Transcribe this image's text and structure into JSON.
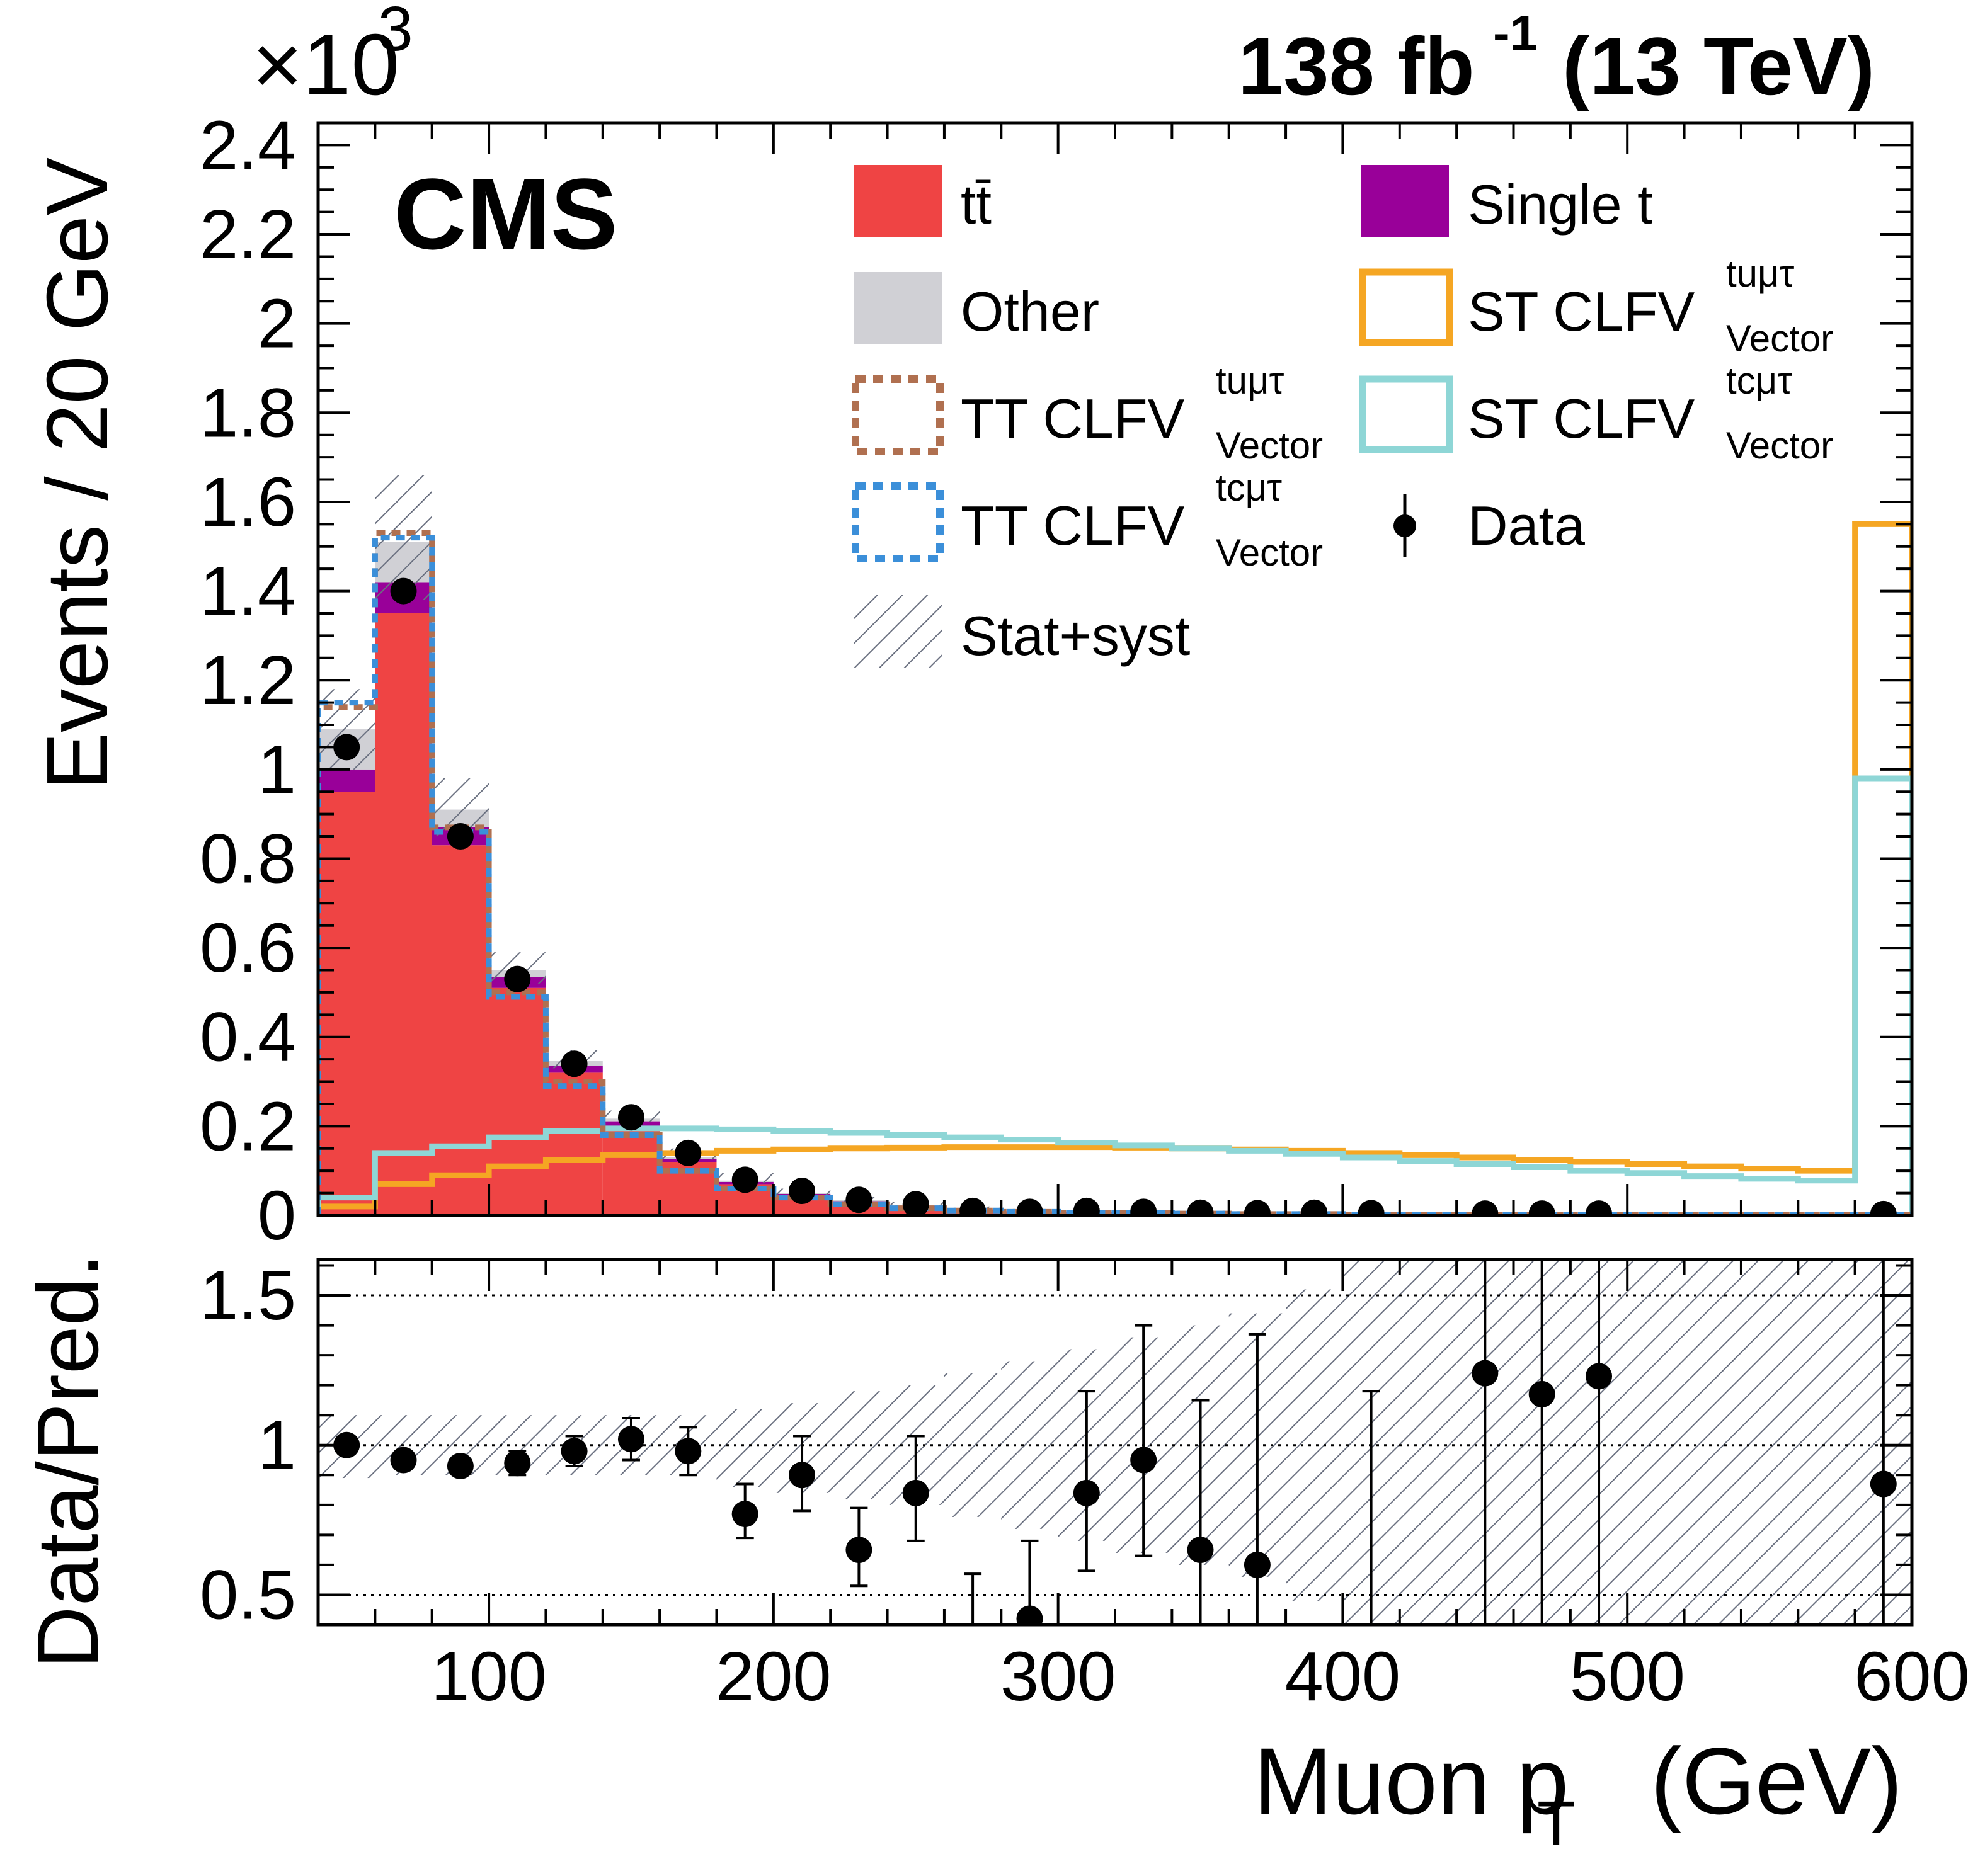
{
  "header": {
    "lumi": "138 fb",
    "lumi_exp": "-1",
    "energy": "(13 TeV)",
    "experiment": "CMS",
    "y_multiplier": "×10",
    "y_multiplier_exp": "3"
  },
  "legend": {
    "tt": "tt̄",
    "single_t": "Single t",
    "other": "Other",
    "st_tumutau": "ST CLFV",
    "st_tumutau_sup": "tuμτ",
    "st_tumutau_sub": "Vector",
    "tt_tumutau": "TT CLFV",
    "tt_tumutau_sup": "tuμτ",
    "tt_tumutau_sub": "Vector",
    "st_tcmutau": "ST CLFV",
    "st_tcmutau_sup": "tcμτ",
    "st_tcmutau_sub": "Vector",
    "tt_tcmutau": "TT CLFV",
    "tt_tcmutau_sup": "tcμτ",
    "tt_tcmutau_sub": "Vector",
    "data": "Data",
    "unc": "Stat+syst"
  },
  "colors": {
    "tt": "#ef4444",
    "single_t": "#990099",
    "other": "#d0d0d5",
    "st_tu": "#f5a623",
    "st_tc": "#8ed6d6",
    "tt_tu": "#b07050",
    "tt_tc": "#3b8fd9",
    "hatch": "#6a7080"
  },
  "chart_data": {
    "type": "bar",
    "x_edges": [
      40,
      60,
      80,
      100,
      120,
      140,
      160,
      180,
      200,
      220,
      240,
      260,
      280,
      300,
      320,
      340,
      360,
      380,
      400,
      420,
      440,
      460,
      480,
      500,
      520,
      540,
      560,
      580,
      600
    ],
    "xlim": [
      40,
      600
    ],
    "xlabel": "Muon p",
    "xlabel_sub": "T",
    "xlabel_unit": "(GeV)",
    "main": {
      "ylabel": "Events / 20 GeV",
      "ylim": [
        0,
        2.45
      ],
      "y_scale_factor": 1000,
      "y_ticks": [
        0,
        0.2,
        0.4,
        0.6,
        0.8,
        1,
        1.2,
        1.4,
        1.6,
        1.8,
        2,
        2.2,
        2.4
      ],
      "y_tick_labels": [
        "0",
        "0.2",
        "0.4",
        "0.6",
        "0.8",
        "1",
        "1.2",
        "1.4",
        "1.6",
        "1.8",
        "2",
        "2.2",
        "2.4"
      ],
      "stack": [
        {
          "key": "tt",
          "values": [
            0.95,
            1.35,
            0.83,
            0.51,
            0.32,
            0.2,
            0.12,
            0.07,
            0.045,
            0.03,
            0.02,
            0.012,
            0.008,
            0.006,
            0.005,
            0.004,
            0.003,
            0.003,
            0.002,
            0.002,
            0.002,
            0.002,
            0.001,
            0.001,
            0.001,
            0.001,
            0.001,
            0.002
          ]
        },
        {
          "key": "single_t",
          "values": [
            0.05,
            0.07,
            0.04,
            0.025,
            0.016,
            0.011,
            0.007,
            0.005,
            0.003,
            0.002,
            0.002,
            0.001,
            0.001,
            0.001,
            0.001,
            0.0,
            0.0,
            0.0,
            0.0,
            0.0,
            0.0,
            0.0,
            0.0,
            0.0,
            0.0,
            0.0,
            0.0,
            0.0
          ]
        },
        {
          "key": "other",
          "values": [
            0.09,
            0.09,
            0.04,
            0.015,
            0.01,
            0.006,
            0.004,
            0.003,
            0.002,
            0.002,
            0.001,
            0.001,
            0.001,
            0.0,
            0.0,
            0.0,
            0.0,
            0.0,
            0.0,
            0.0,
            0.0,
            0.0,
            0.0,
            0.0,
            0.0,
            0.0,
            0.0,
            0.0
          ]
        }
      ],
      "unc_band": [
        {
          "lo": 1.0,
          "hi": 1.18
        },
        {
          "lo": 1.38,
          "hi": 1.66
        },
        {
          "lo": 0.85,
          "hi": 0.98
        },
        {
          "lo": 0.52,
          "hi": 0.59
        },
        {
          "lo": 0.33,
          "hi": 0.37
        },
        {
          "lo": 0.21,
          "hi": 0.235
        },
        {
          "lo": 0.125,
          "hi": 0.15
        },
        {
          "lo": 0.072,
          "hi": 0.095
        },
        {
          "lo": 0.045,
          "hi": 0.06
        },
        {
          "lo": 0.03,
          "hi": 0.042
        },
        {
          "lo": 0.02,
          "hi": 0.03
        },
        {
          "lo": 0.012,
          "hi": 0.02
        },
        {
          "lo": 0.008,
          "hi": 0.014
        },
        {
          "lo": 0.006,
          "hi": 0.01
        },
        {
          "lo": 0.005,
          "hi": 0.008
        },
        {
          "lo": 0.004,
          "hi": 0.007
        },
        {
          "lo": 0.003,
          "hi": 0.005
        },
        {
          "lo": 0.003,
          "hi": 0.005
        },
        {
          "lo": 0.002,
          "hi": 0.004
        },
        {
          "lo": 0.002,
          "hi": 0.004
        },
        {
          "lo": 0.002,
          "hi": 0.004
        },
        {
          "lo": 0.002,
          "hi": 0.003
        },
        {
          "lo": 0.001,
          "hi": 0.003
        },
        {
          "lo": 0.001,
          "hi": 0.003
        },
        {
          "lo": 0.001,
          "hi": 0.003
        },
        {
          "lo": 0.001,
          "hi": 0.003
        },
        {
          "lo": 0.001,
          "hi": 0.003
        },
        {
          "lo": 0.002,
          "hi": 0.004
        }
      ],
      "signals": [
        {
          "key": "st_tu",
          "style": "solid",
          "values": [
            0.02,
            0.07,
            0.09,
            0.11,
            0.125,
            0.135,
            0.14,
            0.145,
            0.148,
            0.15,
            0.152,
            0.153,
            0.153,
            0.153,
            0.152,
            0.15,
            0.148,
            0.145,
            0.14,
            0.135,
            0.13,
            0.125,
            0.12,
            0.115,
            0.11,
            0.105,
            0.1,
            1.55
          ]
        },
        {
          "key": "st_tc",
          "style": "solid",
          "values": [
            0.04,
            0.14,
            0.155,
            0.175,
            0.19,
            0.195,
            0.195,
            0.193,
            0.19,
            0.185,
            0.18,
            0.175,
            0.17,
            0.163,
            0.157,
            0.15,
            0.145,
            0.138,
            0.13,
            0.122,
            0.115,
            0.108,
            0.1,
            0.095,
            0.088,
            0.082,
            0.078,
            0.98
          ]
        },
        {
          "key": "tt_tu",
          "style": "dotted",
          "values": [
            1.14,
            1.53,
            0.87,
            0.5,
            0.3,
            0.18,
            0.1,
            0.06,
            0.04,
            0.025,
            0.016,
            0.011,
            0.008,
            0.006,
            0.005,
            0.004,
            0.003,
            0.003,
            0.002,
            0.002,
            0.002,
            0.002,
            0.001,
            0.001,
            0.001,
            0.001,
            0.001,
            0.002
          ]
        },
        {
          "key": "tt_tc",
          "style": "dotted",
          "values": [
            1.15,
            1.52,
            0.86,
            0.49,
            0.29,
            0.18,
            0.1,
            0.06,
            0.04,
            0.025,
            0.016,
            0.011,
            0.008,
            0.006,
            0.005,
            0.004,
            0.003,
            0.003,
            0.002,
            0.002,
            0.002,
            0.002,
            0.001,
            0.001,
            0.001,
            0.001,
            0.001,
            0.002
          ]
        }
      ],
      "data": {
        "x": [
          50,
          70,
          90,
          110,
          130,
          150,
          170,
          190,
          210,
          230,
          250,
          270,
          290,
          310,
          330,
          350,
          370,
          390,
          410,
          450,
          470,
          490,
          590
        ],
        "y": [
          1.05,
          1.4,
          0.85,
          0.53,
          0.34,
          0.22,
          0.14,
          0.08,
          0.055,
          0.035,
          0.025,
          0.01,
          0.008,
          0.01,
          0.008,
          0.006,
          0.005,
          0.006,
          0.005,
          0.004,
          0.004,
          0.004,
          0.003
        ]
      }
    },
    "ratio": {
      "ylabel": "Data/Pred.",
      "ylim": [
        0.4,
        1.62
      ],
      "y_ticks": [
        0.5,
        1,
        1.5
      ],
      "y_tick_labels": [
        "0.5",
        "1",
        "1.5"
      ],
      "ref_lines": [
        0.5,
        1,
        1.5
      ],
      "x_ticks": [
        100,
        200,
        300,
        400,
        500,
        600
      ],
      "x_tick_labels": [
        "100",
        "200",
        "300",
        "400",
        "500",
        "600"
      ],
      "band": [
        [
          0.89,
          1.1
        ],
        [
          0.9,
          1.1
        ],
        [
          0.9,
          1.1
        ],
        [
          0.9,
          1.1
        ],
        [
          0.9,
          1.1
        ],
        [
          0.9,
          1.1
        ],
        [
          0.9,
          1.1
        ],
        [
          0.86,
          1.12
        ],
        [
          0.84,
          1.14
        ],
        [
          0.82,
          1.18
        ],
        [
          0.8,
          1.2
        ],
        [
          0.76,
          1.24
        ],
        [
          0.72,
          1.28
        ],
        [
          0.68,
          1.32
        ],
        [
          0.64,
          1.36
        ],
        [
          0.6,
          1.4
        ],
        [
          0.56,
          1.44
        ],
        [
          0.48,
          1.52
        ],
        [
          0.4,
          1.62
        ],
        [
          0.4,
          1.62
        ],
        [
          0.4,
          1.62
        ],
        [
          0.4,
          1.62
        ],
        [
          0.4,
          1.62
        ],
        [
          0.4,
          1.62
        ],
        [
          0.4,
          1.62
        ],
        [
          0.4,
          1.62
        ],
        [
          0.4,
          1.62
        ],
        [
          0.4,
          1.62
        ]
      ],
      "data": [
        {
          "x": 50,
          "y": 1.0,
          "lo": 0.98,
          "hi": 1.02
        },
        {
          "x": 70,
          "y": 0.95,
          "lo": 0.93,
          "hi": 0.97
        },
        {
          "x": 90,
          "y": 0.93,
          "lo": 0.9,
          "hi": 0.96
        },
        {
          "x": 110,
          "y": 0.94,
          "lo": 0.9,
          "hi": 0.98
        },
        {
          "x": 130,
          "y": 0.98,
          "lo": 0.93,
          "hi": 1.03
        },
        {
          "x": 150,
          "y": 1.02,
          "lo": 0.95,
          "hi": 1.09
        },
        {
          "x": 170,
          "y": 0.98,
          "lo": 0.9,
          "hi": 1.06
        },
        {
          "x": 190,
          "y": 0.77,
          "lo": 0.69,
          "hi": 0.87
        },
        {
          "x": 210,
          "y": 0.9,
          "lo": 0.78,
          "hi": 1.03
        },
        {
          "x": 230,
          "y": 0.65,
          "lo": 0.53,
          "hi": 0.79
        },
        {
          "x": 250,
          "y": 0.84,
          "lo": 0.68,
          "hi": 1.03
        },
        {
          "x": 270,
          "y": null,
          "lo": 0.4,
          "hi": 0.57
        },
        {
          "x": 290,
          "y": 0.42,
          "lo": 0.4,
          "hi": 0.68
        },
        {
          "x": 310,
          "y": 0.84,
          "lo": 0.58,
          "hi": 1.18
        },
        {
          "x": 330,
          "y": 0.95,
          "lo": 0.63,
          "hi": 1.4
        },
        {
          "x": 350,
          "y": 0.65,
          "lo": 0.4,
          "hi": 1.15
        },
        {
          "x": 370,
          "y": 0.6,
          "lo": 0.4,
          "hi": 1.37
        },
        {
          "x": 410,
          "y": null,
          "lo": 0.4,
          "hi": 1.18
        },
        {
          "x": 450,
          "y": 1.24,
          "lo": 0.4,
          "hi": 1.62
        },
        {
          "x": 470,
          "y": 1.17,
          "lo": 0.4,
          "hi": 1.62
        },
        {
          "x": 490,
          "y": 1.23,
          "lo": 0.4,
          "hi": 1.62
        },
        {
          "x": 590,
          "y": 0.87,
          "lo": 0.4,
          "hi": 1.62
        }
      ]
    }
  }
}
